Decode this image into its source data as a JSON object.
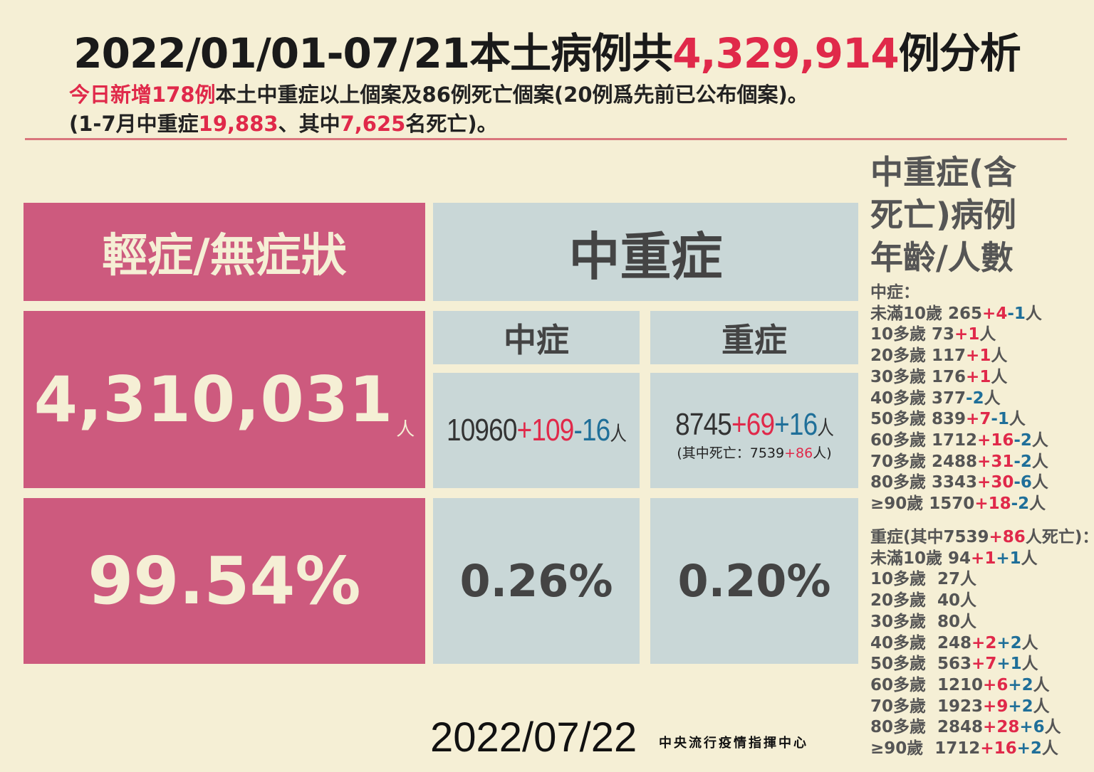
{
  "header": {
    "title_prefix": "2022/01/01-07/21本土病例共",
    "title_total": "4,329,914",
    "title_suffix": "例分析",
    "line1_highlight": "今日新增178例",
    "line1_rest": "本土中重症以上個案及86例死亡個案(20例爲先前已公布個案)。",
    "line2_a": "(1-7月中重症",
    "line2_b": "19,883",
    "line2_c": "、其中",
    "line2_d": "7,625",
    "line2_e": "名死亡)。"
  },
  "mild": {
    "header": "輕症/無症狀",
    "count": "4,310,031",
    "unit": "人",
    "percent": "99.54%"
  },
  "severe_group": {
    "header": "中重症",
    "moderate": {
      "header": "中症",
      "base": "10960",
      "plus": "+109",
      "minus": "-16",
      "unit": "人",
      "percent": "0.26%"
    },
    "severe": {
      "header": "重症",
      "base": "8745",
      "plus": "+69",
      "plus2": "+16",
      "unit": "人",
      "death_note_a": "(其中死亡：7539",
      "death_note_b": "+86",
      "death_note_c": "人)",
      "percent": "0.20%"
    }
  },
  "age_panel": {
    "title": [
      "中重症(含",
      "死亡)病例",
      "年齡/人數"
    ],
    "moderate_label": "中症：",
    "moderate": [
      {
        "age": "未滿10歲",
        "sep": " ",
        "base": "265",
        "parts": [
          {
            "t": "+4",
            "c": "red"
          },
          {
            "t": "-1",
            "c": "blue"
          }
        ],
        "unit": "人"
      },
      {
        "age": "10多歲",
        "sep": " ",
        "base": "73",
        "parts": [
          {
            "t": "+1",
            "c": "red"
          }
        ],
        "unit": "人"
      },
      {
        "age": "20多歲",
        "sep": " ",
        "base": "117",
        "parts": [
          {
            "t": "+1",
            "c": "red"
          }
        ],
        "unit": "人"
      },
      {
        "age": "30多歲",
        "sep": " ",
        "base": "176",
        "parts": [
          {
            "t": "+1",
            "c": "red"
          }
        ],
        "unit": "人"
      },
      {
        "age": "40多歲",
        "sep": " ",
        "base": "377",
        "parts": [
          {
            "t": "-2",
            "c": "blue"
          }
        ],
        "unit": "人"
      },
      {
        "age": "50多歲",
        "sep": " ",
        "base": "839",
        "parts": [
          {
            "t": "+7",
            "c": "red"
          },
          {
            "t": "-1",
            "c": "blue"
          }
        ],
        "unit": "人"
      },
      {
        "age": "60多歲",
        "sep": " ",
        "base": "1712",
        "parts": [
          {
            "t": "+16",
            "c": "red"
          },
          {
            "t": "-2",
            "c": "blue"
          }
        ],
        "unit": "人"
      },
      {
        "age": "70多歲",
        "sep": " ",
        "base": "2488",
        "parts": [
          {
            "t": "+31",
            "c": "red"
          },
          {
            "t": "-2",
            "c": "blue"
          }
        ],
        "unit": "人"
      },
      {
        "age": "80多歲",
        "sep": " ",
        "base": "3343",
        "parts": [
          {
            "t": "+30",
            "c": "red"
          },
          {
            "t": "-6",
            "c": "blue"
          }
        ],
        "unit": "人"
      },
      {
        "age": "≥90歲",
        "sep": " ",
        "base": "1570",
        "parts": [
          {
            "t": "+18",
            "c": "red"
          },
          {
            "t": "-2",
            "c": "blue"
          }
        ],
        "unit": "人"
      }
    ],
    "severe_label_a": "重症(其中7539",
    "severe_label_b": "+86",
    "severe_label_c": "人死亡)：",
    "severe": [
      {
        "age": "未滿10歲",
        "sep": " ",
        "base": "94",
        "parts": [
          {
            "t": "+1",
            "c": "red"
          },
          {
            "t": "+1",
            "c": "blue"
          }
        ],
        "unit": "人"
      },
      {
        "age": "10多歲",
        "sep": "  ",
        "base": "27",
        "parts": [],
        "unit": "人"
      },
      {
        "age": "20多歲",
        "sep": "  ",
        "base": "40",
        "parts": [],
        "unit": "人"
      },
      {
        "age": "30多歲",
        "sep": "  ",
        "base": "80",
        "parts": [],
        "unit": "人"
      },
      {
        "age": "40多歲",
        "sep": "  ",
        "base": "248",
        "parts": [
          {
            "t": "+2",
            "c": "red"
          },
          {
            "t": "+2",
            "c": "blue"
          }
        ],
        "unit": "人"
      },
      {
        "age": "50多歲",
        "sep": "  ",
        "base": "563",
        "parts": [
          {
            "t": "+7",
            "c": "red"
          },
          {
            "t": "+1",
            "c": "blue"
          }
        ],
        "unit": "人"
      },
      {
        "age": "60多歲",
        "sep": "  ",
        "base": "1210",
        "parts": [
          {
            "t": "+6",
            "c": "red"
          },
          {
            "t": "+2",
            "c": "blue"
          }
        ],
        "unit": "人"
      },
      {
        "age": "70多歲",
        "sep": "  ",
        "base": "1923",
        "parts": [
          {
            "t": "+9",
            "c": "red"
          },
          {
            "t": "+2",
            "c": "blue"
          }
        ],
        "unit": "人"
      },
      {
        "age": "80多歲",
        "sep": "  ",
        "base": "2848",
        "parts": [
          {
            "t": "+28",
            "c": "red"
          },
          {
            "t": "+6",
            "c": "blue"
          }
        ],
        "unit": "人"
      },
      {
        "age": "≥90歲",
        "sep": "  ",
        "base": "1712",
        "parts": [
          {
            "t": "+16",
            "c": "red"
          },
          {
            "t": "+2",
            "c": "blue"
          }
        ],
        "unit": "人"
      }
    ]
  },
  "footer": {
    "date": "2022/07/22",
    "org": "中央流行疫情指揮中心"
  },
  "colors": {
    "background": "#f5efd5",
    "mild_pink": "#cd5a7e",
    "severe_gray": "#c9d7d7",
    "increase_red": "#e0294a",
    "change_blue": "#1f6f99",
    "divider": "#d9767d"
  }
}
